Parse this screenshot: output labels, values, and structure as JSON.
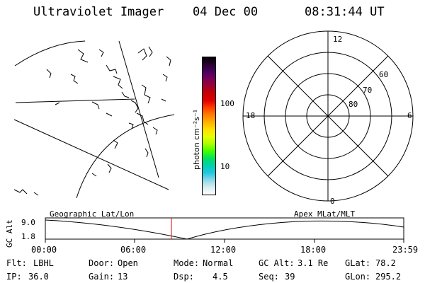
{
  "header": {
    "title": "Ultraviolet Imager",
    "date": "04 Dec 00",
    "time": "08:31:44 UT"
  },
  "colorbar": {
    "unit_label": "photon cm⁻²s⁻¹",
    "ticks": [
      "100",
      "10"
    ],
    "colors": [
      "#000000",
      "#2a0030",
      "#4b0060",
      "#7a005a",
      "#a00030",
      "#c80000",
      "#e00000",
      "#ff4000",
      "#ff8000",
      "#ffb000",
      "#ffe000",
      "#e6ff00",
      "#a8ff00",
      "#40ff00",
      "#00e060",
      "#00d0b0",
      "#20c8e0",
      "#90d8e8",
      "#d8eef0",
      "#ffffff"
    ]
  },
  "polar": {
    "mlt_labels": {
      "top": "12",
      "left": "18",
      "right": "6",
      "bottom": "0"
    },
    "lat_labels": [
      "60",
      "70",
      "80"
    ]
  },
  "plot": {
    "left_caption": "Geographic Lat/Lon",
    "right_caption": "Apex MLat/MLT",
    "y_axis_label": "GC Alt",
    "y_ticks": [
      "9.0",
      "1.8"
    ],
    "x_ticks": [
      "00:00",
      "06:00",
      "12:00",
      "18:00",
      "23:59"
    ],
    "marker_color": "#e00000"
  },
  "status": {
    "row1": [
      {
        "label": "Flt:",
        "value": "LBHL"
      },
      {
        "label": "Door:",
        "value": "Open"
      },
      {
        "label": "Mode:",
        "value": "Normal"
      },
      {
        "label": "GC Alt:",
        "value": "3.1 Re"
      },
      {
        "label": "GLat:",
        "value": "78.2"
      }
    ],
    "row2": [
      {
        "label": "IP:",
        "value": "36.0"
      },
      {
        "label": "Gain:",
        "value": "13"
      },
      {
        "label": "Dsp:",
        "value": "4.5"
      },
      {
        "label": "Seq:",
        "value": "39"
      },
      {
        "label": "GLon:",
        "value": "295.2"
      }
    ]
  }
}
